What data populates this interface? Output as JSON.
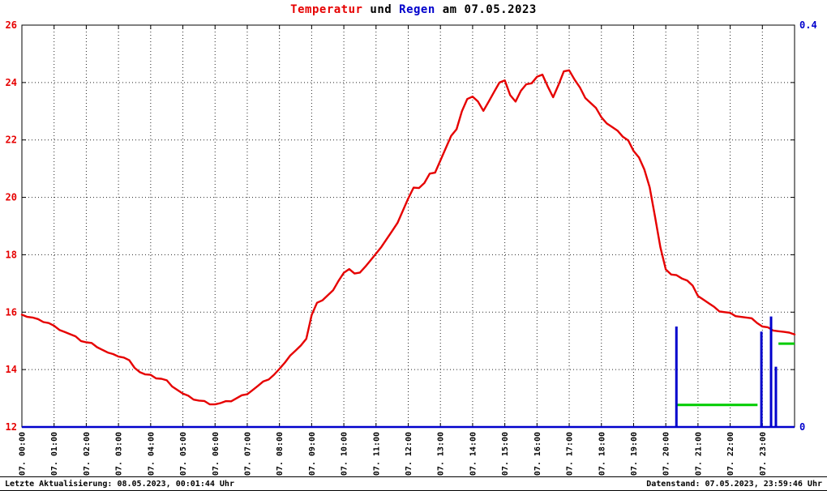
{
  "title": {
    "temperature_word": "Temperatur",
    "connector_word": "und",
    "rain_word": "Regen",
    "date_part": "am 07.05.2023"
  },
  "footer": {
    "last_update": "Letzte Aktualisierung: 08.05.2023, 00:01:44 Uhr",
    "data_timestamp": "Datenstand: 07.05.2023, 23:59:46 Uhr"
  },
  "colors": {
    "temperature": "#e60000",
    "rain": "#0000cc",
    "accumulation": "#00cc00",
    "grid": "#000000",
    "axis_text_left": "#e60000",
    "axis_text_right": "#0000cc",
    "x_labels": "#000000"
  },
  "chart_data": {
    "type": "line",
    "title": "Temperatur und Regen am 07.05.2023",
    "grid": {
      "style": "dotted",
      "horizontal_step": 2,
      "vertical_step_hours": 1
    },
    "x_axis": {
      "unit": "time",
      "range_hours": [
        0,
        24
      ],
      "tick_labels": [
        "07. 00:00",
        "07. 01:00",
        "07. 02:00",
        "07. 03:00",
        "07. 04:00",
        "07. 05:00",
        "07. 06:00",
        "07. 07:00",
        "07. 08:00",
        "07. 09:00",
        "07. 10:00",
        "07. 11:00",
        "07. 12:00",
        "07. 13:00",
        "07. 14:00",
        "07. 15:00",
        "07. 16:00",
        "07. 17:00",
        "07. 18:00",
        "07. 19:00",
        "07. 20:00",
        "07. 21:00",
        "07. 22:00",
        "07. 23:00"
      ]
    },
    "y_axis_left": {
      "series": "Temperatur",
      "min": 12,
      "max": 26,
      "tick_labels": [
        "12",
        "14",
        "16",
        "18",
        "20",
        "22",
        "24",
        "26"
      ]
    },
    "y_axis_right": {
      "series": "Regen",
      "min": 0,
      "max": 0.4,
      "tick_labels": [
        "0",
        "0.4"
      ]
    },
    "temperature_series": {
      "name": "Temperatur",
      "start_hour": 0,
      "interval_minutes": 10,
      "values": [
        15.95,
        15.85,
        15.8,
        15.72,
        15.68,
        15.62,
        15.5,
        15.42,
        15.32,
        15.22,
        15.12,
        15.02,
        14.95,
        14.9,
        14.82,
        14.7,
        14.58,
        14.5,
        14.48,
        14.42,
        14.3,
        14.1,
        13.92,
        13.82,
        13.78,
        13.72,
        13.68,
        13.6,
        13.45,
        13.3,
        13.15,
        13.05,
        12.98,
        12.92,
        12.88,
        12.83,
        12.8,
        12.82,
        12.86,
        12.92,
        13.0,
        13.08,
        13.18,
        13.3,
        13.42,
        13.55,
        13.68,
        13.82,
        14.0,
        14.28,
        14.5,
        14.65,
        14.8,
        15.1,
        15.9,
        16.3,
        16.45,
        16.6,
        16.75,
        17.05,
        17.4,
        17.5,
        17.32,
        17.42,
        17.6,
        17.8,
        18.0,
        18.3,
        18.55,
        18.8,
        19.15,
        19.55,
        19.95,
        20.3,
        20.35,
        20.5,
        20.8,
        20.9,
        21.3,
        21.7,
        22.1,
        22.4,
        23.0,
        23.4,
        23.55,
        23.35,
        23.0,
        23.3,
        23.7,
        24.0,
        24.05,
        23.6,
        23.35,
        23.7,
        23.9,
        24.0,
        24.2,
        24.25,
        23.9,
        23.5,
        23.9,
        24.35,
        24.45,
        24.1,
        23.8,
        23.5,
        23.3,
        23.1,
        22.75,
        22.6,
        22.45,
        22.3,
        22.15,
        22.0,
        21.6,
        21.35,
        21.0,
        20.35,
        19.3,
        18.3,
        17.5,
        17.3,
        17.25,
        17.2,
        17.1,
        16.9,
        16.6,
        16.45,
        16.3,
        16.15,
        16.05,
        16.0,
        15.95,
        15.9,
        15.85,
        15.8,
        15.75,
        15.65,
        15.5,
        15.45,
        15.4,
        15.35,
        15.3,
        15.25,
        15.25
      ]
    },
    "rain_bars": {
      "name": "Regen",
      "axis": "right",
      "points": [
        {
          "hour": 20.33,
          "value": 0.1
        },
        {
          "hour": 22.97,
          "value": 0.095
        },
        {
          "hour": 23.27,
          "value": 0.11
        },
        {
          "hour": 23.42,
          "value": 0.06
        }
      ]
    },
    "rain_accumulation_segments": [
      {
        "from_hour": 20.35,
        "to_hour": 22.85,
        "value": 0.022
      },
      {
        "from_hour": 23.5,
        "to_hour": 24,
        "value": 0.083
      }
    ],
    "baseline": {
      "axis": "right",
      "value": 0
    }
  }
}
